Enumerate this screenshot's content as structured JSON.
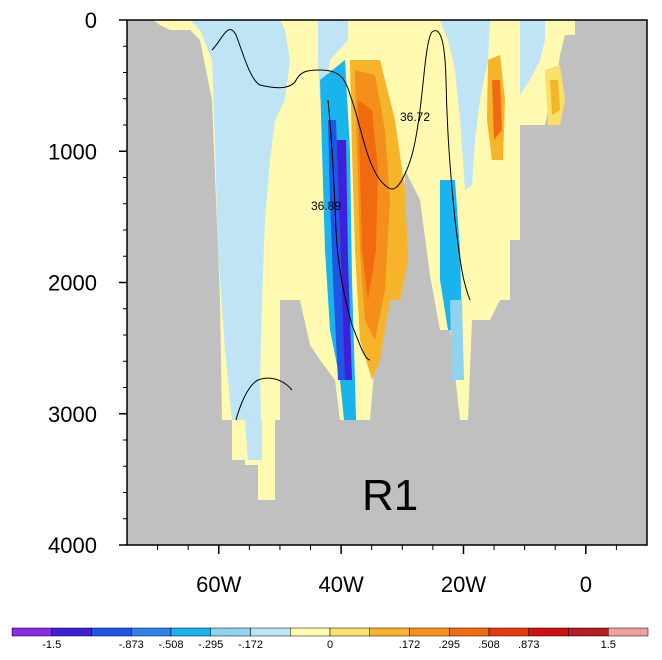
{
  "chart_data": {
    "type": "heatmap",
    "panel_label": "R1",
    "x_axis": {
      "range": [
        -75,
        10
      ],
      "tick_values": [
        -60,
        -40,
        -20,
        0
      ],
      "tick_labels": [
        "60W",
        "40W",
        "20W",
        "0"
      ]
    },
    "y_axis": {
      "range": [
        0,
        4000
      ],
      "inverted": true,
      "tick_values": [
        0,
        1000,
        2000,
        3000,
        4000
      ],
      "tick_labels": [
        "0",
        "1000",
        "2000",
        "3000",
        "4000"
      ]
    },
    "colorbar": {
      "levels": [
        "-1.5",
        "-.873",
        "-.508",
        "-.295",
        "-.172",
        "0",
        ".172",
        ".295",
        ".508",
        ".873",
        "1.5"
      ],
      "colors": [
        "#8a2be2",
        "#3f1fd8",
        "#1f56e6",
        "#2f83e6",
        "#19b4ee",
        "#8fd3ee",
        "#bfe4f5",
        "#fffab0",
        "#f8e06a",
        "#f5b42a",
        "#f48f1c",
        "#f26a0f",
        "#e63a12",
        "#d40f0f",
        "#b81c1c",
        "#f1a0a0"
      ]
    },
    "contour_labels": [
      {
        "text": "36.72",
        "value": 36.72
      },
      {
        "text": "36.89",
        "value": 36.89
      }
    ],
    "colors": {
      "land": "#c0c0c0",
      "background": "#ffffff"
    }
  }
}
